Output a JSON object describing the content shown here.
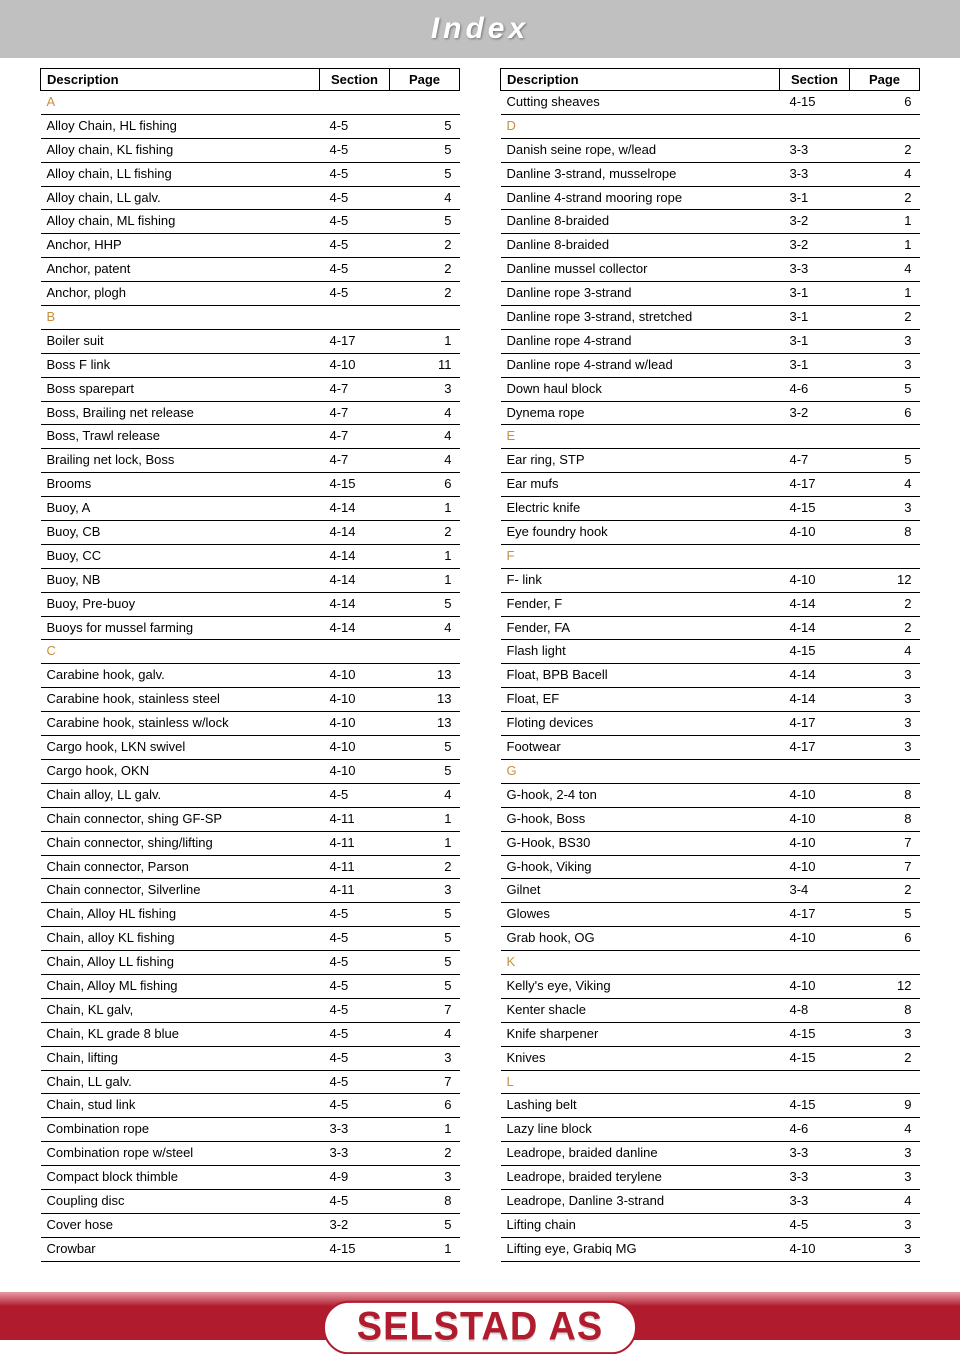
{
  "title": "Index",
  "logo": "SELSTAD AS",
  "columns": {
    "description": "Description",
    "section": "Section",
    "page": "Page"
  },
  "colors": {
    "title_bg": "#c0c0c0",
    "title_text": "#ffffff",
    "letter": "#c98f3f",
    "stripe": "#b01b2e",
    "logo_text": "#b01b2e"
  },
  "left": [
    {
      "letter": "A"
    },
    {
      "d": "Alloy Chain, HL   fishing",
      "s": "4-5",
      "p": "5"
    },
    {
      "d": "Alloy chain, KL   fishing",
      "s": "4-5",
      "p": "5"
    },
    {
      "d": "Alloy chain, LL   fishing",
      "s": "4-5",
      "p": "5"
    },
    {
      "d": "Alloy chain, LL galv.",
      "s": "4-5",
      "p": "4"
    },
    {
      "d": "Alloy chain, ML   fishing",
      "s": "4-5",
      "p": "5"
    },
    {
      "d": "Anchor, HHP",
      "s": "4-5",
      "p": "2"
    },
    {
      "d": "Anchor, patent",
      "s": "4-5",
      "p": "2"
    },
    {
      "d": "Anchor, plogh",
      "s": "4-5",
      "p": "2"
    },
    {
      "letter": "B"
    },
    {
      "d": "Boiler suit",
      "s": "4-17",
      "p": "1"
    },
    {
      "d": "Boss F link",
      "s": "4-10",
      "p": "11"
    },
    {
      "d": "Boss sparepart",
      "s": "4-7",
      "p": "3"
    },
    {
      "d": "Boss, Brailing net release",
      "s": "4-7",
      "p": "4"
    },
    {
      "d": "Boss, Trawl release",
      "s": "4-7",
      "p": "4"
    },
    {
      "d": "Brailing net lock, Boss",
      "s": "4-7",
      "p": "4"
    },
    {
      "d": "Brooms",
      "s": "4-15",
      "p": "6"
    },
    {
      "d": "Buoy, A",
      "s": "4-14",
      "p": "1"
    },
    {
      "d": "Buoy, CB",
      "s": "4-14",
      "p": "2"
    },
    {
      "d": "Buoy, CC",
      "s": "4-14",
      "p": "1"
    },
    {
      "d": "Buoy, NB",
      "s": "4-14",
      "p": "1"
    },
    {
      "d": "Buoy, Pre-buoy",
      "s": "4-14",
      "p": "5"
    },
    {
      "d": "Buoys for mussel farming",
      "s": "4-14",
      "p": "4"
    },
    {
      "letter": "C"
    },
    {
      "d": "Carabine hook, galv.",
      "s": "4-10",
      "p": "13"
    },
    {
      "d": "Carabine hook, stainless steel",
      "s": "4-10",
      "p": "13"
    },
    {
      "d": "Carabine hook, stainless w/lock",
      "s": "4-10",
      "p": "13"
    },
    {
      "d": "Cargo hook, LKN swivel",
      "s": "4-10",
      "p": "5"
    },
    {
      "d": "Cargo hook, OKN",
      "s": "4-10",
      "p": "5"
    },
    {
      "d": "Chain alloy, LL galv.",
      "s": "4-5",
      "p": "4"
    },
    {
      "d": "Chain connector,   shing GF-SP",
      "s": "4-11",
      "p": "1"
    },
    {
      "d": "Chain connector,   shing/lifting",
      "s": "4-11",
      "p": "1"
    },
    {
      "d": "Chain connector, Parson",
      "s": "4-11",
      "p": "2"
    },
    {
      "d": "Chain connector, Silverline",
      "s": "4-11",
      "p": "3"
    },
    {
      "d": "Chain, Alloy HL fishing",
      "s": "4-5",
      "p": "5"
    },
    {
      "d": "Chain, alloy KL fishing",
      "s": "4-5",
      "p": "5"
    },
    {
      "d": "Chain, Alloy LL fishing",
      "s": "4-5",
      "p": "5"
    },
    {
      "d": "Chain, Alloy ML fishing",
      "s": "4-5",
      "p": "5"
    },
    {
      "d": "Chain, KL galv,",
      "s": "4-5",
      "p": "7"
    },
    {
      "d": "Chain, KL grade 8 blue",
      "s": "4-5",
      "p": "4"
    },
    {
      "d": "Chain, lifting",
      "s": "4-5",
      "p": "3"
    },
    {
      "d": "Chain, LL galv.",
      "s": "4-5",
      "p": "7"
    },
    {
      "d": "Chain, stud link",
      "s": "4-5",
      "p": "6"
    },
    {
      "d": "Combination rope",
      "s": "3-3",
      "p": "1"
    },
    {
      "d": "Combination rope w/steel",
      "s": "3-3",
      "p": "2"
    },
    {
      "d": "Compact block thimble",
      "s": "4-9",
      "p": "3"
    },
    {
      "d": "Coupling disc",
      "s": "4-5",
      "p": "8"
    },
    {
      "d": "Cover hose",
      "s": "3-2",
      "p": "5"
    },
    {
      "d": "Crowbar",
      "s": "4-15",
      "p": "1"
    }
  ],
  "right": [
    {
      "d": "Cutting sheaves",
      "s": "4-15",
      "p": "6"
    },
    {
      "letter": "D"
    },
    {
      "d": "Danish seine rope, w/lead",
      "s": "3-3",
      "p": "2"
    },
    {
      "d": "Danline 3-strand, musselrope",
      "s": "3-3",
      "p": "4"
    },
    {
      "d": "Danline 4-strand mooring rope",
      "s": "3-1",
      "p": "2"
    },
    {
      "d": "Danline 8-braided",
      "s": "3-2",
      "p": "1"
    },
    {
      "d": "Danline 8-braided",
      "s": "3-2",
      "p": "1"
    },
    {
      "d": "Danline mussel collector",
      "s": "3-3",
      "p": "4"
    },
    {
      "d": "Danline rope 3-strand",
      "s": "3-1",
      "p": "1"
    },
    {
      "d": "Danline rope 3-strand, stretched",
      "s": "3-1",
      "p": "2"
    },
    {
      "d": "Danline rope 4-strand",
      "s": "3-1",
      "p": "3"
    },
    {
      "d": "Danline rope 4-strand w/lead",
      "s": "3-1",
      "p": "3"
    },
    {
      "d": "Down haul block",
      "s": "4-6",
      "p": "5"
    },
    {
      "d": "Dynema rope",
      "s": "3-2",
      "p": "6"
    },
    {
      "letter": "E"
    },
    {
      "d": "Ear ring, STP",
      "s": "4-7",
      "p": "5"
    },
    {
      "d": "Ear mufs",
      "s": " 4-17",
      "p": "4"
    },
    {
      "d": "Electric knife",
      "s": "4-15",
      "p": "3"
    },
    {
      "d": "Eye foundry hook",
      "s": "4-10",
      "p": "8"
    },
    {
      "letter": "F"
    },
    {
      "d": "F- link",
      "s": "4-10",
      "p": "12"
    },
    {
      "d": "Fender, F",
      "s": "4-14",
      "p": "2"
    },
    {
      "d": "Fender, FA",
      "s": "4-14",
      "p": "2"
    },
    {
      "d": "Flash light",
      "s": "4-15",
      "p": "4"
    },
    {
      "d": "Float, BPB Bacell",
      "s": "4-14",
      "p": "3"
    },
    {
      "d": "Float, EF",
      "s": "4-14",
      "p": "3"
    },
    {
      "d": "Floting devices",
      "s": "4-17",
      "p": "3"
    },
    {
      "d": "Footwear",
      "s": "4-17",
      "p": "3"
    },
    {
      "letter": "G"
    },
    {
      "d": "G-hook, 2-4 ton",
      "s": "4-10",
      "p": "8"
    },
    {
      "d": "G-hook, Boss",
      "s": "4-10",
      "p": "8"
    },
    {
      "d": "G-Hook, BS30",
      "s": "4-10",
      "p": "7"
    },
    {
      "d": "G-hook, Viking",
      "s": "4-10",
      "p": "7"
    },
    {
      "d": "Gilnet",
      "s": "3-4",
      "p": "2"
    },
    {
      "d": "Glowes",
      "s": "4-17",
      "p": "5"
    },
    {
      "d": "Grab  hook, OG",
      "s": "4-10",
      "p": "6"
    },
    {
      "letter": "K"
    },
    {
      "d": "Kelly's eye, Viking",
      "s": "4-10",
      "p": "12"
    },
    {
      "d": "Kenter shacle",
      "s": "4-8",
      "p": "8"
    },
    {
      "d": "Knife sharpener",
      "s": "4-15",
      "p": "3"
    },
    {
      "d": "Knives",
      "s": "4-15",
      "p": "2"
    },
    {
      "letter": "L"
    },
    {
      "d": "Lashing belt",
      "s": "4-15",
      "p": "9"
    },
    {
      "d": "Lazy line block",
      "s": "4-6",
      "p": "4"
    },
    {
      "d": "Leadrope, braided danline",
      "s": "3-3",
      "p": "3"
    },
    {
      "d": "Leadrope, braided terylene",
      "s": "3-3",
      "p": "3"
    },
    {
      "d": "Leadrope, Danline 3-strand",
      "s": "3-3",
      "p": "4"
    },
    {
      "d": "Lifting chain",
      "s": "4-5",
      "p": "3"
    },
    {
      "d": "Lifting eye, Grabiq MG",
      "s": "4-10",
      "p": "3"
    }
  ]
}
